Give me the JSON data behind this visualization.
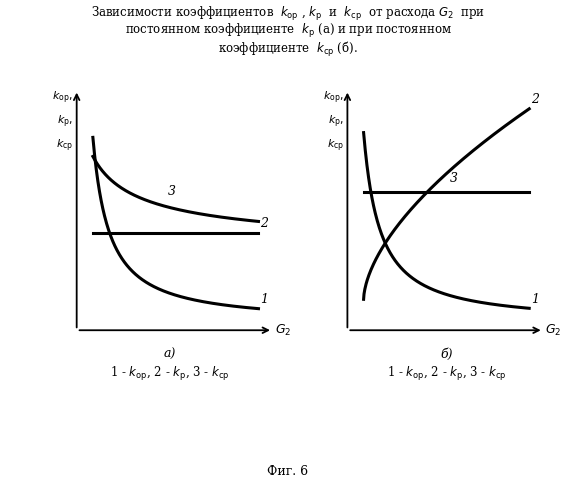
{
  "title_line1": "Зависимости коэффициентов  $k_{\\mathrm{op}}$ , $k_{\\mathrm{p}}$  и  $k_{\\mathrm{cp}}$  от расхода $G_2$  при",
  "title_line2": "постоянном коэффициенте  $k_{\\mathrm{p}}$ (а) и при постоянном",
  "title_line3": "коэффициенте  $k_{\\mathrm{cp}}$ (б).",
  "caption_a": "а)",
  "caption_b": "б)",
  "legend_a": "1 - $k_{\\mathrm{op}}$, 2 - $k_{\\mathrm{p}}$, 3 - $k_{\\mathrm{cp}}$",
  "legend_b": "1 - $k_{\\mathrm{op}}$, 2 - $k_{\\mathrm{p}}$, 3 - $k_{\\mathrm{cp}}$",
  "fig_caption": "Фиг. 6",
  "bg_color": "#ffffff"
}
